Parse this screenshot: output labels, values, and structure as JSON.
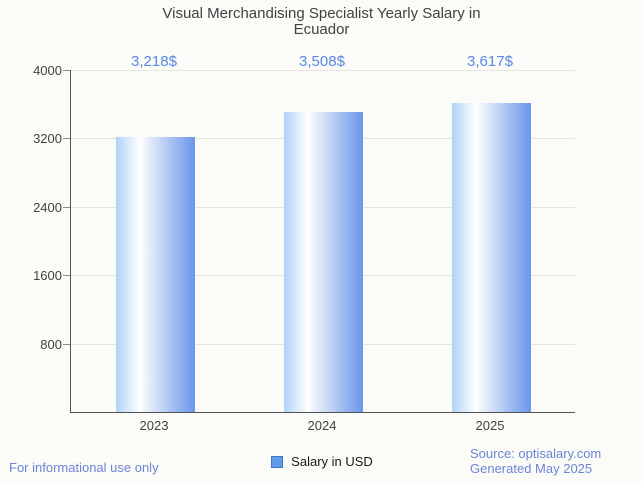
{
  "title": "Visual Merchandising Specialist Yearly Salary in Ecuador",
  "chart_data": {
    "type": "bar",
    "title": "Visual Merchandising Specialist Yearly Salary in Ecuador",
    "categories": [
      "2023",
      "2024",
      "2025"
    ],
    "values": [
      3218,
      3508,
      3617
    ],
    "value_labels": [
      "3,218$",
      "3,508$",
      "3,617$"
    ],
    "series": [
      {
        "name": "Salary in USD",
        "values": [
          3218,
          3508,
          3617
        ]
      }
    ],
    "xlabel": "",
    "ylabel": "",
    "ylim": [
      0,
      4000
    ],
    "yticks": [
      800,
      1600,
      2400,
      3200,
      4000
    ],
    "grid": true,
    "legend_position": "bottom"
  },
  "legend": {
    "label": "Salary in USD"
  },
  "footer": {
    "left": "For informational use only",
    "source": "Source: optisalary.com",
    "generated": "Generated May 2025"
  },
  "colors": {
    "value_label_blue": "#5b87e5",
    "footer_blue": "#6d85d6",
    "bar_gradient_left": "#b0d2f8",
    "bar_gradient_mid": "#ffffff",
    "bar_gradient_right": "#6996e9",
    "axis": "#555555",
    "grid": "#e5e5e2",
    "text": "#424242",
    "legend_fill": "#639ae8",
    "legend_border": "#3b76cf",
    "background": "#fbfbf8"
  }
}
